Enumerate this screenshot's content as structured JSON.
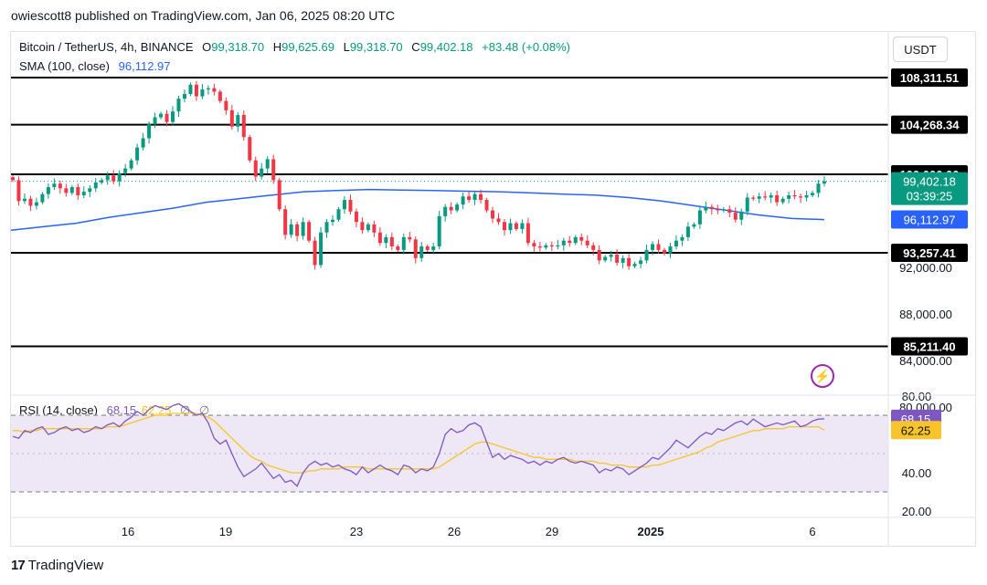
{
  "header": {
    "published": "owiescott8 published on TradingView.com, Jan 06, 2025 08:20 UTC"
  },
  "symbol": {
    "name": "Bitcoin / TetherUS, 4h, BINANCE",
    "open_label": "O",
    "open": "99,318.70",
    "high_label": "H",
    "high": "99,625.69",
    "low_label": "L",
    "low": "99,318.70",
    "close_label": "C",
    "close": "99,402.18",
    "change": "+83.48 (+0.08%)"
  },
  "sma_legend": {
    "label": "SMA (100, close)",
    "value": "96,112.97"
  },
  "rsi_legend": {
    "label": "RSI (14, close)",
    "value1": "68.15",
    "value2": "62.25",
    "ghost1": "∅",
    "ghost2": "∅"
  },
  "currency_button": "USDT",
  "brand": {
    "name": "TradingView",
    "logo_glyph": "17"
  },
  "colors": {
    "up": "#089981",
    "down": "#f23645",
    "sma": "#2962ff",
    "rsi": "#7e57c2",
    "rsi_ma": "#f7c52b",
    "band": "#ede7f6"
  },
  "chart_data": [
    {
      "type": "candlestick",
      "title": "Bitcoin / TetherUS, 4h, BINANCE",
      "x_tick_labels": [
        "16",
        "19",
        "23",
        "26",
        "29",
        "2025",
        "6"
      ],
      "y_tick_labels": [
        "92,000.00",
        "88,000.00",
        "84,000.00",
        "80,000.00"
      ],
      "ylim": [
        80000,
        110000
      ],
      "price_labels": {
        "last_price": "99,402.18",
        "countdown": "03:39:25",
        "sma": "96,112.97"
      },
      "horizontal_levels": [
        {
          "value": 108311.51,
          "label": "108,311.51"
        },
        {
          "value": 104268.34,
          "label": "104,268.34"
        },
        {
          "value": 100000.0,
          "label": "100,000.00"
        },
        {
          "value": 93257.41,
          "label": "93,257.41"
        },
        {
          "value": 85211.4,
          "label": "85,211.40"
        }
      ],
      "candles_close": [
        99500,
        97700,
        97900,
        97300,
        97600,
        98300,
        98900,
        99200,
        98800,
        98400,
        98900,
        98200,
        98500,
        98800,
        99300,
        99500,
        99900,
        99400,
        100100,
        100500,
        101200,
        102300,
        103100,
        104300,
        104900,
        105200,
        104500,
        105400,
        106500,
        106900,
        107700,
        106700,
        107300,
        107400,
        107100,
        106300,
        105500,
        104100,
        105100,
        103200,
        101200,
        99800,
        100500,
        101300,
        99500,
        97000,
        94800,
        95700,
        94700,
        95900,
        94300,
        92200,
        95000,
        95900,
        96100,
        97000,
        97800,
        96800,
        95900,
        95200,
        95700,
        95000,
        94100,
        94600,
        93800,
        93500,
        94600,
        94400,
        92800,
        93800,
        93500,
        93800,
        96400,
        97200,
        96900,
        97400,
        98100,
        97800,
        98300,
        97800,
        96900,
        96200,
        95900,
        95200,
        95800,
        95300,
        95800,
        94100,
        93800,
        93700,
        93900,
        93800,
        93900,
        94300,
        94100,
        94600,
        94300,
        93900,
        93500,
        92600,
        92900,
        93100,
        92400,
        92800,
        92100,
        92300,
        92600,
        93500,
        94000,
        93500,
        93200,
        93800,
        94300,
        94600,
        95500,
        95700,
        96900,
        97200,
        97000,
        96900,
        97000,
        96700,
        96100,
        96800,
        98000,
        97900,
        98100,
        98000,
        98200,
        97600,
        97900,
        98200,
        98100,
        98000,
        98200,
        98400,
        99200,
        99402
      ],
      "sma_100": [
        95200,
        95500,
        95800,
        96300,
        96700,
        97100,
        97600,
        97900,
        98200,
        98500,
        98600,
        98700,
        98650,
        98600,
        98550,
        98500,
        98400,
        98300,
        98200,
        98000,
        97700,
        97300,
        96900,
        96500,
        96200,
        96112
      ],
      "rsi_panel": {
        "label": "RSI (14, close)",
        "rsi_value": "68.15",
        "ma_value": "62.25",
        "y_tick_labels": [
          "80.00",
          "40.00",
          "20.00"
        ],
        "ylim": [
          20,
          80
        ],
        "upper_band": 70,
        "lower_band": 30,
        "rsi": [
          59,
          58,
          62,
          61,
          63,
          64,
          60,
          61,
          63,
          64,
          62,
          63,
          61,
          62,
          64,
          63,
          65,
          66,
          64,
          67,
          69,
          72,
          70,
          73,
          75,
          74,
          73,
          75,
          76,
          74,
          72,
          70,
          71,
          66,
          58,
          55,
          57,
          50,
          43,
          38,
          40,
          42,
          45,
          41,
          37,
          39,
          35,
          36,
          33,
          40,
          44,
          46,
          44,
          45,
          43,
          44,
          42,
          41,
          39,
          43,
          40,
          42,
          44,
          42,
          41,
          39,
          44,
          43,
          40,
          42,
          41,
          43,
          50,
          60,
          63,
          61,
          62,
          65,
          66,
          64,
          56,
          48,
          50,
          47,
          49,
          48,
          47,
          45,
          46,
          44,
          46,
          45,
          47,
          48,
          46,
          45,
          46,
          45,
          44,
          40,
          42,
          41,
          43,
          42,
          39,
          41,
          43,
          45,
          48,
          47,
          50,
          53,
          57,
          55,
          53,
          56,
          59,
          61,
          60,
          63,
          62,
          64,
          66,
          67,
          65,
          68,
          66,
          64,
          65,
          66,
          65,
          66,
          67,
          64,
          65,
          67,
          68,
          68.15
        ],
        "rsi_ma": [
          62,
          62,
          61,
          62,
          62,
          63,
          63,
          63,
          63,
          63,
          63,
          63,
          63,
          63,
          63,
          63,
          64,
          64,
          64,
          65,
          66,
          67,
          68,
          69,
          70,
          70,
          70,
          71,
          71,
          71,
          71,
          71,
          70,
          69,
          67,
          64,
          61,
          58,
          55,
          52,
          49,
          47,
          46,
          44,
          43,
          42,
          41,
          40,
          40,
          40,
          41,
          41,
          42,
          42,
          42,
          42,
          43,
          43,
          43,
          43,
          42,
          42,
          42,
          42,
          42,
          42,
          42,
          42,
          42,
          42,
          42,
          42,
          43,
          45,
          47,
          49,
          51,
          53,
          55,
          56,
          56,
          55,
          54,
          53,
          52,
          51,
          50,
          49,
          48,
          48,
          47,
          47,
          47,
          47,
          47,
          46,
          46,
          46,
          46,
          45,
          45,
          44,
          44,
          44,
          43,
          43,
          43,
          43,
          44,
          44,
          45,
          46,
          47,
          48,
          49,
          50,
          51,
          53,
          54,
          56,
          57,
          58,
          59,
          60,
          61,
          62,
          62,
          63,
          63,
          63,
          63,
          64,
          64,
          64,
          64,
          64,
          64,
          62.25
        ]
      }
    }
  ]
}
